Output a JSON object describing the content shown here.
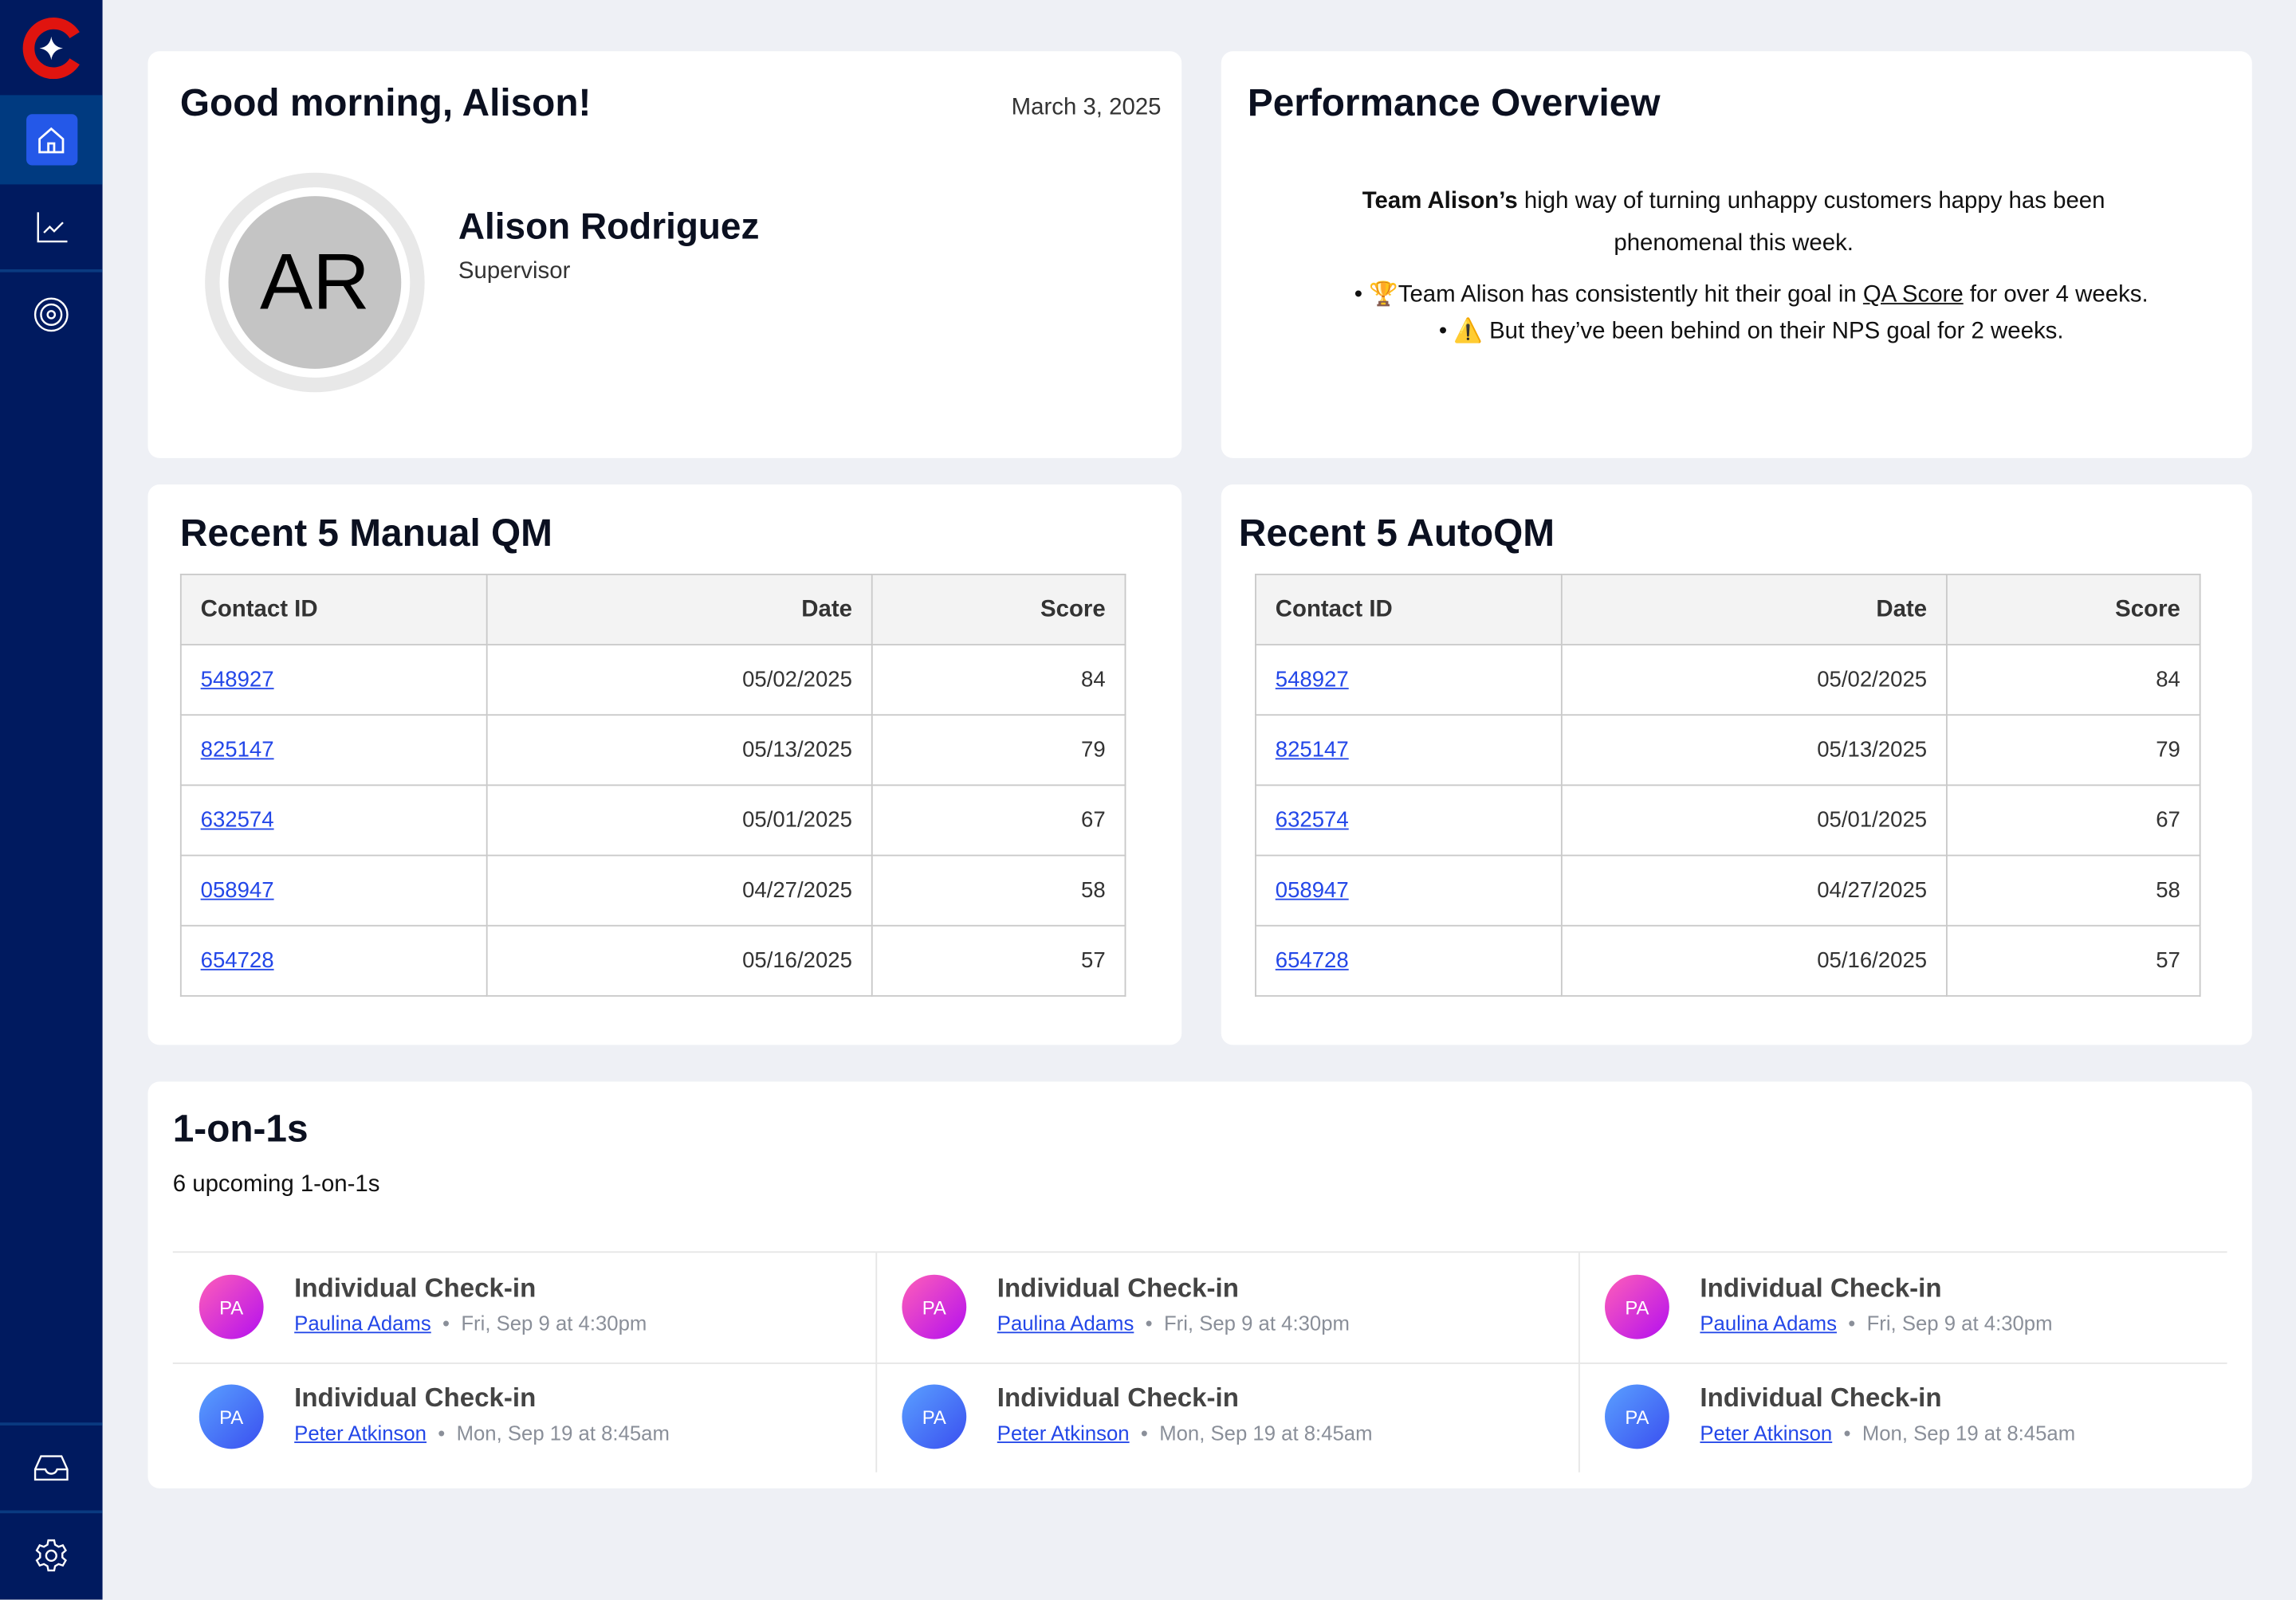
{
  "sidebar": {
    "items": [
      {
        "icon": "home-icon",
        "active": true
      },
      {
        "icon": "chart-icon"
      },
      {
        "icon": "target-icon"
      },
      {
        "icon": "inbox-icon"
      },
      {
        "icon": "gear-icon"
      }
    ],
    "brand_colors": {
      "red": "#e0140f",
      "navy": "#001a5f",
      "active": "#2458e8"
    }
  },
  "greeting": {
    "title": "Good morning, Alison!",
    "date": "March 3, 2025",
    "initials": "AR",
    "name": "Alison Rodriguez",
    "role": "Supervisor"
  },
  "performance": {
    "title": "Performance Overview",
    "intro_bold": "Team Alison’s",
    "intro_rest": " high way of turning unhappy customers happy has been phenomenal this week.",
    "bullet1_pre": "Team Alison has consistently hit their goal in ",
    "bullet1_link": "QA Score",
    "bullet1_post": " for over 4 weeks.",
    "bullet1_icon": "🏆",
    "bullet2": "But they’ve been behind on their NPS goal for 2 weeks.",
    "bullet2_icon": "⚠️"
  },
  "manual_qm": {
    "title": "Recent 5 Manual QM",
    "headers": [
      "Contact ID",
      "Date",
      "Score"
    ],
    "rows": [
      [
        "548927",
        "05/02/2025",
        "84"
      ],
      [
        "825147",
        "05/13/2025",
        "79"
      ],
      [
        "632574",
        "05/01/2025",
        "67"
      ],
      [
        "058947",
        "04/27/2025",
        "58"
      ],
      [
        "654728",
        "05/16/2025",
        "57"
      ]
    ]
  },
  "auto_qm": {
    "title": "Recent 5 AutoQM",
    "headers": [
      "Contact ID",
      "Date",
      "Score"
    ],
    "rows": [
      [
        "548927",
        "05/02/2025",
        "84"
      ],
      [
        "825147",
        "05/13/2025",
        "79"
      ],
      [
        "632574",
        "05/01/2025",
        "67"
      ],
      [
        "058947",
        "04/27/2025",
        "58"
      ],
      [
        "654728",
        "05/16/2025",
        "57"
      ]
    ]
  },
  "one_on_ones": {
    "title": "1-on-1s",
    "subtitle": "6 upcoming 1-on-1s",
    "items": [
      {
        "initials": "PA",
        "title": "Individual Check-in",
        "person": "Paulina Adams",
        "when": "Fri, Sep 9 at 4:30pm",
        "color": "pink"
      },
      {
        "initials": "PA",
        "title": "Individual Check-in",
        "person": "Paulina Adams",
        "when": "Fri, Sep 9 at 4:30pm",
        "color": "pink"
      },
      {
        "initials": "PA",
        "title": "Individual Check-in",
        "person": "Paulina Adams",
        "when": "Fri, Sep 9 at 4:30pm",
        "color": "pink"
      },
      {
        "initials": "PA",
        "title": "Individual Check-in",
        "person": "Peter Atkinson",
        "when": "Mon, Sep 19 at 8:45am",
        "color": "blue"
      },
      {
        "initials": "PA",
        "title": "Individual Check-in",
        "person": "Peter Atkinson",
        "when": "Mon, Sep 19 at 8:45am",
        "color": "blue"
      },
      {
        "initials": "PA",
        "title": "Individual Check-in",
        "person": "Peter Atkinson",
        "when": "Mon, Sep 19 at 8:45am",
        "color": "blue"
      }
    ]
  }
}
